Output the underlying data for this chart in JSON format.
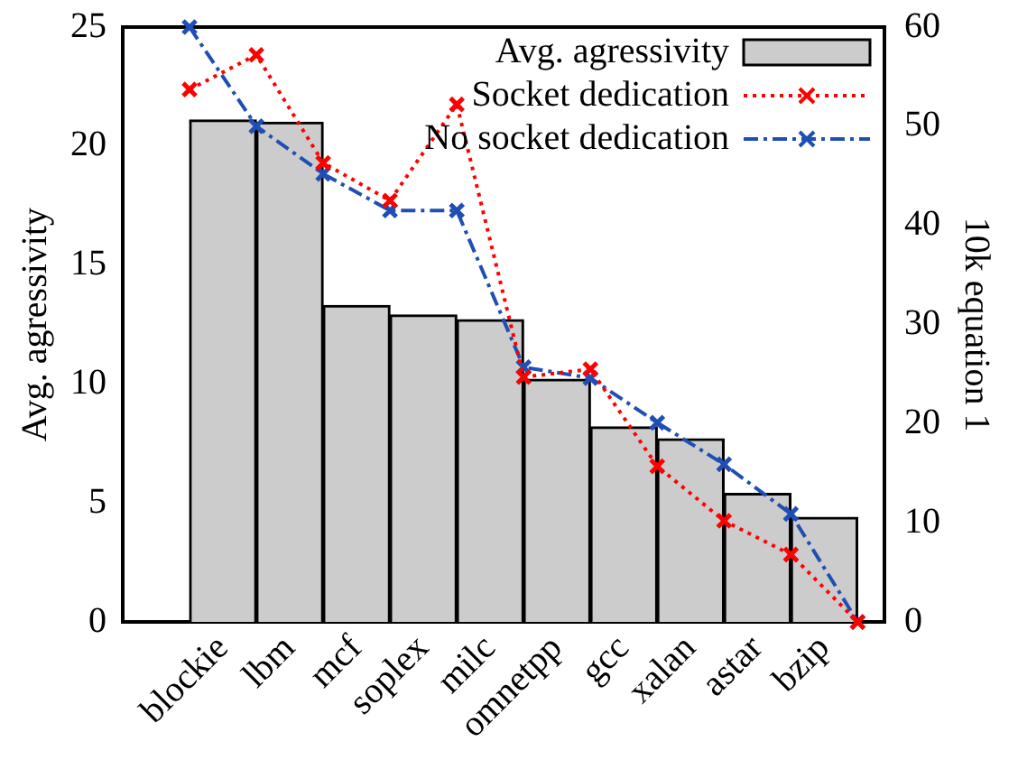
{
  "chart_data": {
    "type": "bar",
    "ylabel": "Avg. agressivity",
    "y2label": "10k equation 1",
    "categories": [
      "blockie",
      "lbm",
      "mcf",
      "soplex",
      "milc",
      "omnetpp",
      "gcc",
      "xalan",
      "astar",
      "bzip",
      null
    ],
    "series": [
      {
        "name": "Avg. agressivity",
        "color": "#cccccc",
        "values": [
          21.1,
          21.0,
          13.3,
          12.9,
          12.7,
          10.2,
          8.2,
          7.7,
          5.4,
          4.4,
          null
        ]
      },
      {
        "name": "Socket dedication",
        "type": "line",
        "axis": "y2",
        "color": "#ff0000",
        "marker": "cross",
        "line_style": "dotted",
        "values": [
          53.7,
          57.2,
          46.3,
          42.5,
          52.2,
          24.7,
          25.5,
          15.7,
          10.2,
          6.8,
          0
        ]
      },
      {
        "name": "No socket dedication",
        "type": "line",
        "axis": "y2",
        "color": "#1f4fb4",
        "marker": "cross",
        "line_style": "dashed",
        "values": [
          60,
          50.0,
          45.2,
          41.5,
          41.5,
          25.7,
          24.6,
          20.1,
          15.9,
          10.9,
          0
        ]
      }
    ],
    "ylim": [
      0,
      25
    ],
    "yticks": [
      0,
      5,
      10,
      15,
      20,
      25
    ],
    "y2lim": [
      0,
      60
    ],
    "y2ticks": [
      0,
      10,
      20,
      30,
      40,
      50,
      60
    ],
    "legend": "top right"
  }
}
